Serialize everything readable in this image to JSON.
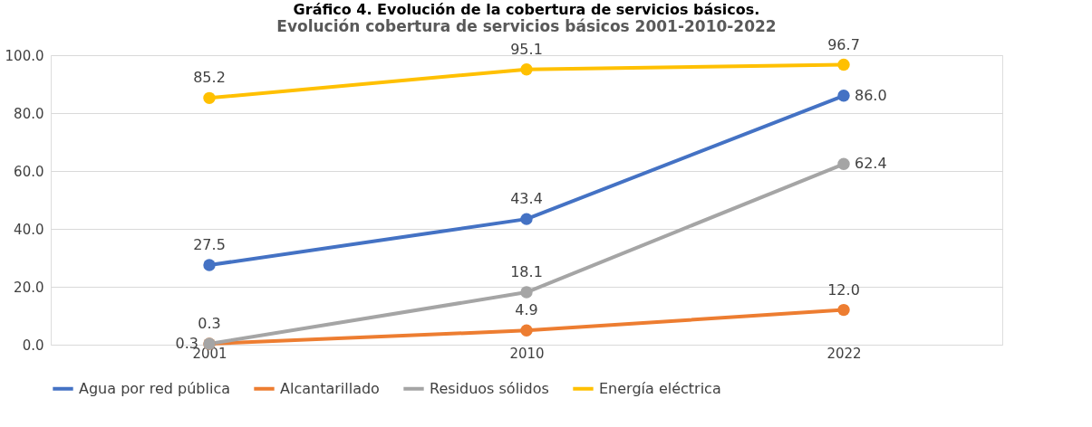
{
  "chart_data": {
    "type": "line",
    "title": "Gráfico 4.          Evolución de la cobertura de servicios básicos.",
    "subtitle": "Evolución cobertura de servicios básicos 2001-2010-2022",
    "categories": [
      "2001",
      "2010",
      "2022"
    ],
    "series": [
      {
        "name": "Agua por red pública",
        "color": "#4472c4",
        "values": [
          27.5,
          43.4,
          86.0
        ],
        "value_labels": [
          "27.5",
          "43.4",
          "86.0"
        ]
      },
      {
        "name": "Alcantarillado",
        "color": "#ed7d31",
        "values": [
          0.3,
          4.9,
          12.0
        ],
        "value_labels": [
          "0.3",
          "4.9",
          "12.0"
        ]
      },
      {
        "name": "Residuos sólidos",
        "color": "#a5a5a5",
        "values": [
          0.3,
          18.1,
          62.4
        ],
        "value_labels": [
          "0.3",
          "18.1",
          "62.4"
        ]
      },
      {
        "name": "Energía eléctrica",
        "color": "#ffc000",
        "values": [
          85.2,
          95.1,
          96.7
        ],
        "value_labels": [
          "85.2",
          "95.1",
          "96.7"
        ]
      }
    ],
    "ylim": [
      0,
      100
    ],
    "yticks": [
      {
        "value": 0,
        "label": "0.0"
      },
      {
        "value": 20,
        "label": "20.0"
      },
      {
        "value": 40,
        "label": "40.0"
      },
      {
        "value": 60,
        "label": "60.0"
      },
      {
        "value": 80,
        "label": "80.0"
      },
      {
        "value": 100,
        "label": "100.0"
      }
    ],
    "grid": "y",
    "legend": "bottom",
    "marker": "circle",
    "line_style": "solid"
  }
}
